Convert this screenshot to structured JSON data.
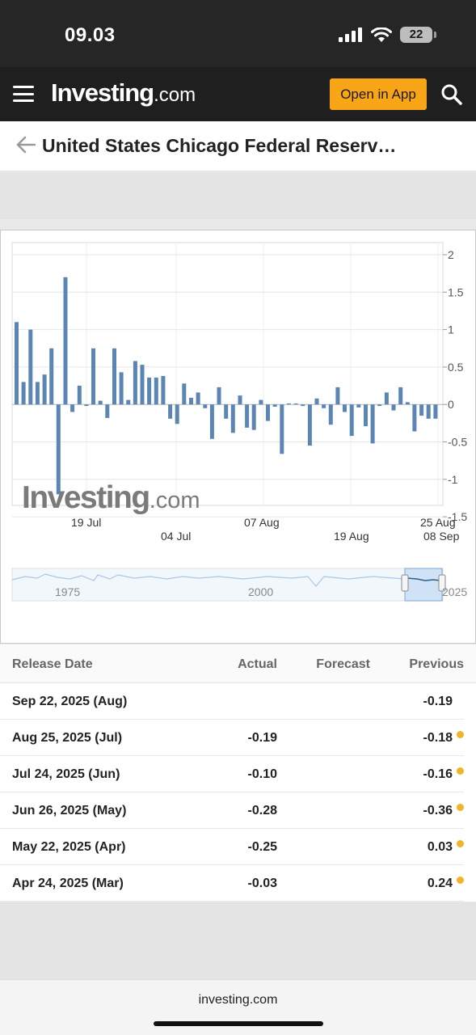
{
  "status": {
    "time": "09.03",
    "battery": "22"
  },
  "nav": {
    "logo_main": "Investing",
    "logo_suffix": ".com",
    "open_app": "Open in App"
  },
  "page": {
    "title": "United States Chicago Federal Reserv…"
  },
  "chart_data": {
    "type": "bar",
    "y_ticks": [
      "2",
      "1.5",
      "1",
      "0.5",
      "0",
      "-0.5",
      "-1",
      "-1.5"
    ],
    "ylim": [
      -1.5,
      2
    ],
    "x_ticks_upper": [
      "19 Jul",
      "07 Aug",
      "25 Aug"
    ],
    "x_ticks_lower": [
      "04 Jul",
      "19 Aug",
      "08 Sep"
    ],
    "watermark_main": "Investing",
    "watermark_suffix": ".com",
    "navigator_labels": [
      "1975",
      "2000",
      "2025"
    ],
    "bar_color": "#5b86b4",
    "values": [
      1.1,
      0.3,
      1.0,
      0.3,
      0.4,
      0.75,
      -1.2,
      1.7,
      -0.1,
      0.25,
      -0.02,
      0.75,
      0.05,
      -0.18,
      0.75,
      0.43,
      0.06,
      0.58,
      0.53,
      0.36,
      0.36,
      0.38,
      -0.19,
      -0.26,
      0.28,
      0.09,
      0.16,
      -0.05,
      -0.46,
      0.23,
      -0.19,
      -0.38,
      0.12,
      -0.31,
      -0.34,
      0.06,
      -0.22,
      -0.03,
      -0.66,
      0.0,
      0.0,
      -0.02,
      -0.55,
      0.08,
      -0.05,
      -0.27,
      0.23,
      -0.1,
      -0.42,
      -0.04,
      -0.29,
      -0.52,
      -0.02,
      0.16,
      -0.08,
      0.23,
      0.03,
      -0.36,
      -0.15,
      -0.19,
      -0.19
    ]
  },
  "table": {
    "headers": {
      "date": "Release Date",
      "actual": "Actual",
      "forecast": "Forecast",
      "previous": "Previous"
    },
    "rows": [
      {
        "date": "Sep 22, 2025 (Aug)",
        "actual": "",
        "forecast": "",
        "previous": "-0.19",
        "dot": false
      },
      {
        "date": "Aug 25, 2025 (Jul)",
        "actual": "-0.19",
        "forecast": "",
        "previous": "-0.18",
        "dot": true
      },
      {
        "date": "Jul 24, 2025 (Jun)",
        "actual": "-0.10",
        "forecast": "",
        "previous": "-0.16",
        "dot": true
      },
      {
        "date": "Jun 26, 2025 (May)",
        "actual": "-0.28",
        "forecast": "",
        "previous": "-0.36",
        "dot": true
      },
      {
        "date": "May 22, 2025 (Apr)",
        "actual": "-0.25",
        "forecast": "",
        "previous": "0.03",
        "dot": true
      },
      {
        "date": "Apr 24, 2025 (Mar)",
        "actual": "-0.03",
        "forecast": "",
        "previous": "0.24",
        "dot": true
      }
    ]
  },
  "footer": {
    "url": "investing.com"
  }
}
